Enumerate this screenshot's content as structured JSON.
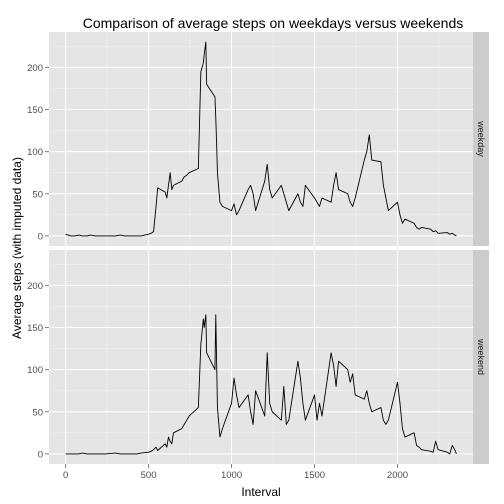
{
  "chart_data": {
    "type": "line",
    "title": "Comparison of average steps on weekdays versus weekends",
    "xlabel": "Interval",
    "ylabel": "Average steps (with imputed data)",
    "xlim": [
      -100,
      2455
    ],
    "ylim": [
      -12,
      242
    ],
    "x_ticks": [
      0,
      500,
      1000,
      1500,
      2000
    ],
    "y_ticks": [
      0,
      50,
      100,
      150,
      200
    ],
    "grid": true,
    "facet": "rows",
    "panels": [
      {
        "strip_label": "weekday",
        "series": [
          {
            "x": [
              0,
              30,
              55,
              80,
              100,
              130,
              150,
              180,
              200,
              240,
              300,
              330,
              355,
              400,
              430,
              455,
              500,
              515,
              530,
              545,
              555,
              600,
              610,
              620,
              630,
              640,
              650,
              700,
              715,
              730,
              745,
              800,
              815,
              830,
              835,
              845,
              850,
              900,
              905,
              910,
              915,
              930,
              945,
              1000,
              1015,
              1030,
              1045,
              1100,
              1115,
              1130,
              1145,
              1200,
              1215,
              1230,
              1245,
              1300,
              1315,
              1330,
              1345,
              1400,
              1415,
              1430,
              1445,
              1500,
              1515,
              1530,
              1545,
              1600,
              1615,
              1630,
              1645,
              1700,
              1715,
              1730,
              1745,
              1800,
              1815,
              1830,
              1845,
              1900,
              1915,
              1930,
              1945,
              2000,
              2015,
              2030,
              2045,
              2100,
              2115,
              2130,
              2145,
              2200,
              2215,
              2230,
              2245,
              2300,
              2315,
              2330,
              2345,
              2355
            ],
            "values": [
              2,
              0,
              0,
              1,
              0,
              0,
              1,
              0,
              0,
              0,
              0,
              1,
              0,
              0,
              0,
              0,
              2,
              3,
              5,
              35,
              57,
              52,
              45,
              60,
              75,
              55,
              60,
              65,
              70,
              72,
              75,
              80,
              195,
              205,
              215,
              230,
              180,
              165,
              140,
              110,
              75,
              40,
              35,
              30,
              38,
              25,
              30,
              55,
              60,
              50,
              30,
              65,
              85,
              55,
              45,
              60,
              50,
              40,
              30,
              50,
              40,
              35,
              60,
              45,
              40,
              35,
              45,
              40,
              60,
              75,
              55,
              50,
              40,
              35,
              45,
              90,
              100,
              120,
              90,
              88,
              60,
              45,
              30,
              40,
              25,
              15,
              20,
              15,
              10,
              8,
              10,
              8,
              5,
              6,
              3,
              4,
              2,
              3,
              1,
              0
            ]
          }
        ]
      },
      {
        "strip_label": "weekend",
        "series": [
          {
            "x": [
              0,
              30,
              55,
              80,
              100,
              130,
              150,
              180,
              200,
              240,
              300,
              330,
              355,
              400,
              430,
              455,
              500,
              515,
              530,
              545,
              555,
              600,
              610,
              620,
              630,
              640,
              650,
              700,
              715,
              730,
              745,
              800,
              815,
              830,
              835,
              845,
              850,
              900,
              905,
              910,
              915,
              930,
              945,
              1000,
              1015,
              1030,
              1045,
              1100,
              1115,
              1130,
              1145,
              1200,
              1215,
              1230,
              1245,
              1300,
              1315,
              1330,
              1345,
              1400,
              1415,
              1430,
              1445,
              1500,
              1515,
              1530,
              1545,
              1600,
              1615,
              1630,
              1645,
              1700,
              1715,
              1730,
              1745,
              1800,
              1815,
              1830,
              1845,
              1900,
              1915,
              1930,
              1945,
              2000,
              2015,
              2030,
              2045,
              2100,
              2115,
              2130,
              2145,
              2200,
              2215,
              2230,
              2245,
              2300,
              2315,
              2330,
              2345,
              2355
            ],
            "values": [
              0,
              0,
              0,
              0,
              1,
              0,
              0,
              0,
              0,
              0,
              1,
              0,
              0,
              0,
              0,
              1,
              2,
              3,
              5,
              8,
              4,
              12,
              8,
              20,
              15,
              12,
              25,
              30,
              35,
              40,
              45,
              55,
              130,
              160,
              150,
              165,
              120,
              100,
              165,
              110,
              55,
              20,
              30,
              60,
              90,
              70,
              55,
              70,
              50,
              35,
              75,
              45,
              120,
              60,
              50,
              40,
              80,
              35,
              40,
              110,
              90,
              60,
              40,
              70,
              40,
              60,
              45,
              120,
              105,
              80,
              110,
              100,
              85,
              95,
              70,
              65,
              75,
              60,
              50,
              55,
              40,
              35,
              40,
              85,
              60,
              30,
              20,
              25,
              10,
              8,
              5,
              3,
              2,
              15,
              5,
              2,
              0,
              10,
              5,
              0
            ]
          }
        ]
      }
    ]
  }
}
